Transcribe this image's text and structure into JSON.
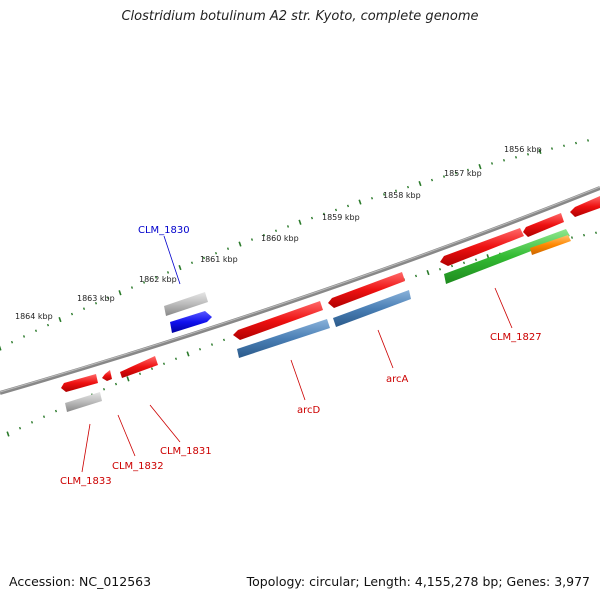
{
  "title": "Clostridium botulinum A2 str. Kyoto, complete genome",
  "footer": {
    "accession": "Accession: NC_012563",
    "summary": "Topology: circular; Length: 4,155,278 bp; Genes: 3,977"
  },
  "scale_labels": [
    "1856 kbp",
    "1857 kbp",
    "1858 kbp",
    "1859 kbp",
    "1860 kbp",
    "1861 kbp",
    "1862 kbp",
    "1863 kbp",
    "1864 kbp"
  ],
  "genes": [
    {
      "label": "CLM_1830",
      "color": "#0000cc"
    },
    {
      "label": "CLM_1827",
      "color": "#cc0000"
    },
    {
      "label": "arcA",
      "color": "#cc0000"
    },
    {
      "label": "arcD",
      "color": "#cc0000"
    },
    {
      "label": "CLM_1831",
      "color": "#cc0000"
    },
    {
      "label": "CLM_1832",
      "color": "#cc0000"
    },
    {
      "label": "CLM_1833",
      "color": "#cc0000"
    }
  ],
  "colors": {
    "backbone": "#777777",
    "ticks": "#2a7a2a",
    "red_gene": "#ee1111",
    "blue_gene": "#1111ee",
    "grey_gene": "#bbbbbb",
    "steel_gene": "#4a7fb5",
    "green_gene": "#33bb33",
    "orange_gene": "#ff8800"
  }
}
